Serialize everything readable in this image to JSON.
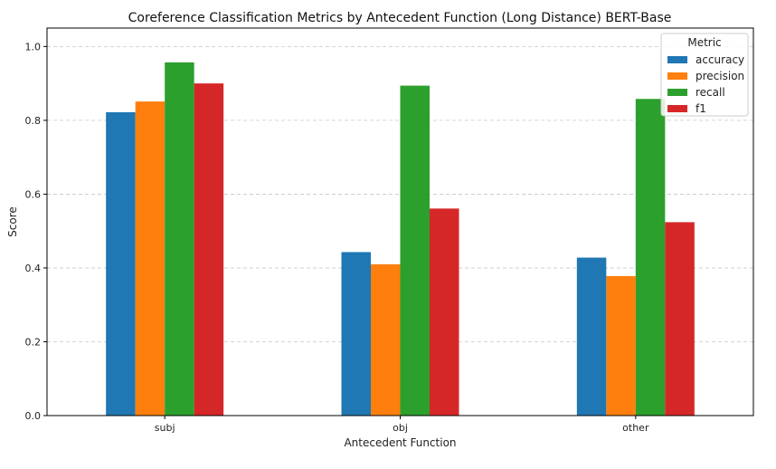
{
  "chart_data": {
    "type": "bar",
    "title": "Coreference Classification Metrics by Antecedent Function (Long Distance) BERT-Base",
    "xlabel": "Antecedent Function",
    "ylabel": "Score",
    "categories": [
      "subj",
      "obj",
      "other"
    ],
    "series": [
      {
        "name": "accuracy",
        "color": "#1f77b4",
        "values": [
          0.822,
          0.443,
          0.428
        ]
      },
      {
        "name": "precision",
        "color": "#ff7f0e",
        "values": [
          0.851,
          0.41,
          0.378
        ]
      },
      {
        "name": "recall",
        "color": "#2ca02c",
        "values": [
          0.957,
          0.894,
          0.858
        ]
      },
      {
        "name": "f1",
        "color": "#d62728",
        "values": [
          0.9,
          0.561,
          0.524
        ]
      }
    ],
    "ylim": [
      0,
      1.05
    ],
    "yticks": [
      "0.0",
      "0.2",
      "0.4",
      "0.6",
      "0.8",
      "1.0"
    ],
    "grid": "y-dashed",
    "legend": {
      "title": "Metric",
      "placement": "top-right"
    }
  }
}
